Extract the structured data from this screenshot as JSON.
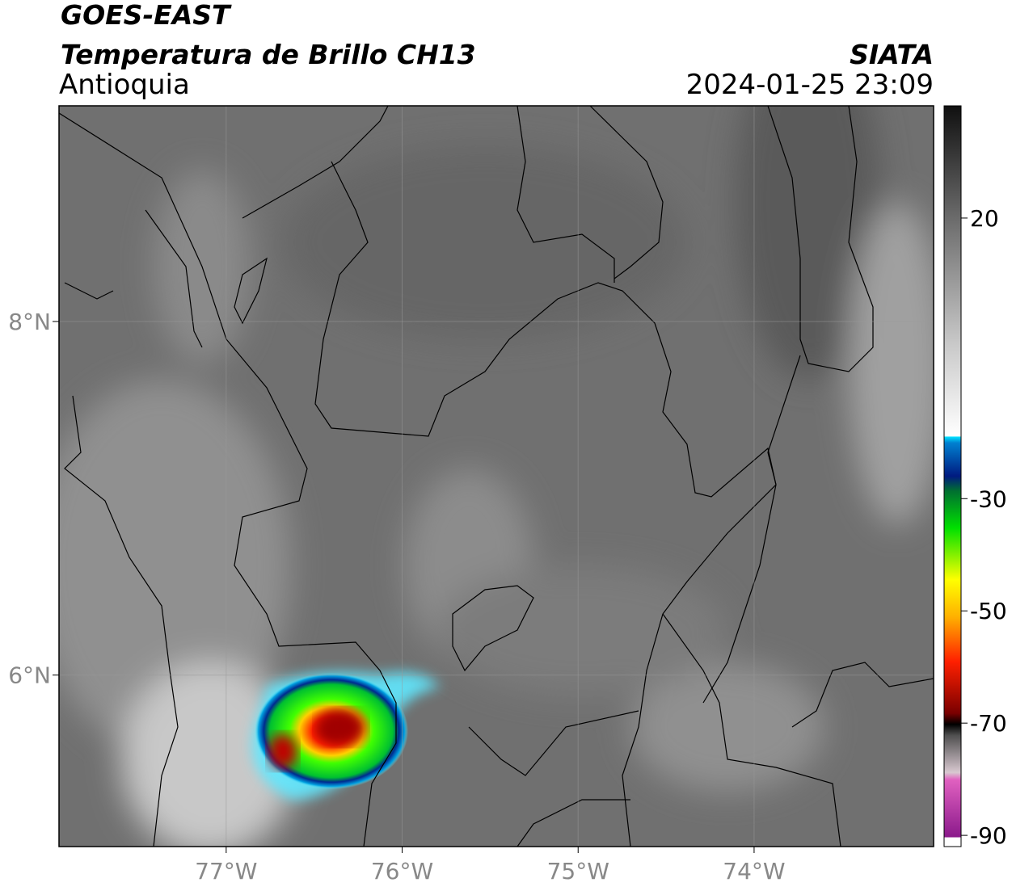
{
  "header": {
    "title": "GOES-EAST",
    "subtitle": "Temperatura de Brillo CH13",
    "region": "Antioquia",
    "source": "SIATA",
    "datetime": "2024-01-25 23:09"
  },
  "map": {
    "xlim": [
      -77.95,
      -72.98
    ],
    "ylim": [
      5.03,
      9.22
    ],
    "xticks": [
      {
        "value": -77,
        "label": "77°W"
      },
      {
        "value": -76,
        "label": "76°W"
      },
      {
        "value": -75,
        "label": "75°W"
      },
      {
        "value": -74,
        "label": "74°W"
      }
    ],
    "yticks": [
      {
        "value": 8,
        "label": "8°N"
      },
      {
        "value": 6,
        "label": "6°N"
      }
    ],
    "grid": true
  },
  "colorbar": {
    "lim": [
      -92,
      40
    ],
    "ticks": [
      20,
      -30,
      -50,
      -70,
      -90
    ]
  }
}
